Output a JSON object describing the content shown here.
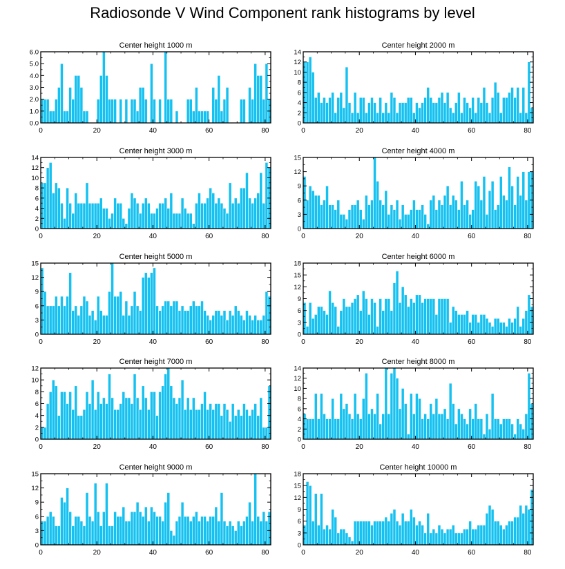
{
  "title": "Radiosonde V Wind Component rank histograms by level",
  "chart_data": [
    {
      "type": "bar",
      "title": "Center height 1000 m",
      "xlim": [
        0,
        82
      ],
      "ylim": [
        0,
        6
      ],
      "xticks": [
        0,
        20,
        40,
        60,
        80
      ],
      "yticks": [
        0,
        1,
        2,
        3,
        4,
        5,
        6
      ],
      "yticklabels": [
        "0.0",
        "1.0",
        "2.0",
        "3.0",
        "4.0",
        "5.0",
        "6.0"
      ],
      "values": [
        2,
        2,
        2,
        1,
        1,
        2,
        3,
        5,
        1,
        1,
        3,
        2,
        4,
        4,
        3,
        1,
        1,
        0,
        0,
        0,
        2,
        4,
        6,
        4,
        2,
        2,
        2,
        0,
        2,
        0,
        2,
        0,
        2,
        2,
        1,
        3,
        3,
        2,
        0,
        5,
        2,
        0,
        2,
        0,
        6,
        2,
        2,
        0,
        1,
        0,
        0,
        0,
        2,
        2,
        1,
        3,
        1,
        1,
        1,
        1,
        0,
        3,
        2,
        4,
        1,
        2,
        3,
        0,
        0,
        0,
        0,
        2,
        2,
        0,
        3,
        2,
        5,
        4,
        4,
        2,
        5,
        2
      ]
    },
    {
      "type": "bar",
      "title": "Center height 2000 m",
      "xlim": [
        0,
        82
      ],
      "ylim": [
        0,
        14
      ],
      "xticks": [
        0,
        20,
        40,
        60,
        80
      ],
      "yticks": [
        0,
        2,
        4,
        6,
        8,
        10,
        12,
        14
      ],
      "yticklabels": [
        "0",
        "2",
        "4",
        "6",
        "8",
        "10",
        "12",
        "14"
      ],
      "values": [
        12,
        12,
        13,
        10,
        5,
        6,
        4,
        5,
        4,
        5,
        6,
        2,
        5,
        6,
        3,
        11,
        4,
        2,
        6,
        2,
        5,
        5,
        2,
        4,
        5,
        4,
        2,
        5,
        2,
        4,
        2,
        6,
        5,
        2,
        4,
        4,
        4,
        5,
        5,
        2,
        4,
        3,
        4,
        5,
        7,
        5,
        4,
        4,
        5,
        6,
        4,
        6,
        3,
        2,
        4,
        6,
        2,
        5,
        4,
        3,
        5,
        2,
        5,
        4,
        7,
        4,
        2,
        5,
        8,
        6,
        2,
        5,
        5,
        6,
        7,
        5,
        7,
        2,
        7,
        2,
        12,
        3
      ]
    },
    {
      "type": "bar",
      "title": "Center height 3000 m",
      "xlim": [
        0,
        82
      ],
      "ylim": [
        0,
        14
      ],
      "xticks": [
        0,
        20,
        40,
        60,
        80
      ],
      "yticks": [
        0,
        2,
        4,
        6,
        8,
        10,
        12,
        14
      ],
      "yticklabels": [
        "0",
        "2",
        "4",
        "6",
        "8",
        "10",
        "12",
        "14"
      ],
      "values": [
        9,
        9,
        12,
        13,
        7,
        9,
        8,
        5,
        2,
        8,
        5,
        3,
        7,
        5,
        5,
        5,
        9,
        5,
        5,
        5,
        5,
        6,
        4,
        4,
        2,
        3,
        6,
        5,
        5,
        2,
        1,
        4,
        7,
        6,
        5,
        3,
        5,
        6,
        5,
        3,
        3,
        4,
        5,
        5,
        6,
        4,
        7,
        3,
        3,
        3,
        6,
        4,
        3,
        3,
        1,
        5,
        7,
        5,
        5,
        6,
        8,
        7,
        5,
        6,
        5,
        4,
        3,
        9,
        5,
        6,
        5,
        8,
        8,
        11,
        6,
        5,
        6,
        7,
        11,
        5,
        13,
        12
      ]
    },
    {
      "type": "bar",
      "title": "Center height 4000 m",
      "xlim": [
        0,
        82
      ],
      "ylim": [
        0,
        15
      ],
      "xticks": [
        0,
        20,
        40,
        60,
        80
      ],
      "yticks": [
        0,
        3,
        6,
        9,
        12,
        15
      ],
      "yticklabels": [
        "0",
        "3",
        "6",
        "9",
        "12",
        "15"
      ],
      "values": [
        11,
        6,
        9,
        8,
        7,
        7,
        5,
        6,
        9,
        5,
        5,
        4,
        6,
        3,
        3,
        2,
        4,
        5,
        5,
        6,
        4,
        2,
        7,
        5,
        6,
        15,
        10,
        6,
        5,
        8,
        3,
        5,
        4,
        6,
        2,
        5,
        3,
        3,
        4,
        6,
        4,
        4,
        5,
        3,
        1,
        6,
        7,
        4,
        6,
        5,
        7,
        9,
        5,
        7,
        6,
        4,
        10,
        5,
        6,
        3,
        4,
        10,
        9,
        6,
        11,
        3,
        8,
        10,
        4,
        5,
        11,
        7,
        6,
        13,
        9,
        5,
        11,
        7,
        12,
        6,
        12,
        12
      ]
    },
    {
      "type": "bar",
      "title": "Center height 5000 m",
      "xlim": [
        0,
        82
      ],
      "ylim": [
        0,
        15
      ],
      "xticks": [
        0,
        20,
        40,
        60,
        80
      ],
      "yticks": [
        0,
        3,
        6,
        9,
        12,
        15
      ],
      "yticklabels": [
        "0",
        "3",
        "6",
        "9",
        "12",
        "15"
      ],
      "values": [
        14,
        9,
        6,
        6,
        6,
        8,
        6,
        8,
        6,
        8,
        13,
        5,
        6,
        4,
        6,
        8,
        7,
        4,
        5,
        3,
        8,
        5,
        4,
        4,
        9,
        15,
        8,
        8,
        9,
        4,
        7,
        4,
        6,
        9,
        6,
        5,
        12,
        13,
        12,
        13,
        14,
        6,
        5,
        6,
        7,
        7,
        6,
        7,
        7,
        5,
        6,
        5,
        5,
        6,
        7,
        6,
        6,
        7,
        5,
        4,
        3,
        4,
        5,
        5,
        4,
        5,
        3,
        5,
        4,
        6,
        5,
        4,
        3,
        5,
        4,
        3,
        4,
        3,
        3,
        4,
        9,
        8
      ]
    },
    {
      "type": "bar",
      "title": "Center height 6000 m",
      "xlim": [
        0,
        82
      ],
      "ylim": [
        0,
        18
      ],
      "xticks": [
        0,
        20,
        40,
        60,
        80
      ],
      "yticks": [
        0,
        3,
        6,
        9,
        12,
        15,
        18
      ],
      "yticklabels": [
        "0",
        "3",
        "6",
        "9",
        "12",
        "15",
        "18"
      ],
      "values": [
        8,
        2,
        8,
        4,
        5,
        7,
        7,
        6,
        5,
        11,
        8,
        7,
        2,
        6,
        9,
        7,
        7,
        8,
        9,
        10,
        6,
        11,
        9,
        5,
        9,
        8,
        2,
        9,
        6,
        9,
        9,
        6,
        13,
        16,
        8,
        12,
        10,
        7,
        9,
        8,
        10,
        10,
        8,
        9,
        9,
        9,
        9,
        5,
        9,
        9,
        9,
        9,
        3,
        7,
        6,
        5,
        5,
        5,
        6,
        3,
        5,
        5,
        3,
        5,
        5,
        4,
        3,
        2,
        4,
        4,
        3,
        3,
        2,
        4,
        3,
        4,
        7,
        2,
        4,
        6,
        10,
        7
      ]
    },
    {
      "type": "bar",
      "title": "Center height 7000 m",
      "xlim": [
        0,
        82
      ],
      "ylim": [
        0,
        12
      ],
      "xticks": [
        0,
        20,
        40,
        60,
        80
      ],
      "yticks": [
        0,
        2,
        4,
        6,
        8,
        10,
        12
      ],
      "yticklabels": [
        "0",
        "2",
        "4",
        "6",
        "8",
        "10",
        "12"
      ],
      "values": [
        2,
        2,
        6,
        8,
        10,
        9,
        4,
        8,
        8,
        6,
        8,
        5,
        9,
        4,
        4,
        5,
        8,
        6,
        10,
        5,
        8,
        6,
        7,
        6,
        11,
        7,
        5,
        5,
        6,
        8,
        7,
        7,
        6,
        11,
        7,
        5,
        9,
        7,
        5,
        8,
        8,
        4,
        8,
        9,
        11,
        12,
        9,
        7,
        6,
        7,
        10,
        5,
        7,
        5,
        7,
        5,
        5,
        6,
        8,
        5,
        6,
        5,
        6,
        6,
        4,
        6,
        5,
        3,
        6,
        4,
        5,
        4,
        6,
        5,
        4,
        5,
        6,
        4,
        7,
        2,
        2,
        9
      ]
    },
    {
      "type": "bar",
      "title": "Center height 8000 m",
      "xlim": [
        0,
        82
      ],
      "ylim": [
        0,
        14
      ],
      "xticks": [
        0,
        20,
        40,
        60,
        80
      ],
      "yticks": [
        0,
        2,
        4,
        6,
        8,
        10,
        12,
        14
      ],
      "yticklabels": [
        "0",
        "2",
        "4",
        "6",
        "8",
        "10",
        "12",
        "14"
      ],
      "values": [
        5,
        4,
        4,
        4,
        9,
        4,
        9,
        5,
        4,
        4,
        8,
        4,
        4,
        9,
        6,
        7,
        5,
        4,
        9,
        5,
        4,
        8,
        13,
        5,
        6,
        5,
        9,
        3,
        5,
        14,
        5,
        13,
        14,
        12,
        6,
        10,
        7,
        1,
        9,
        5,
        9,
        8,
        4,
        5,
        4,
        7,
        5,
        8,
        5,
        5,
        6,
        4,
        11,
        7,
        3,
        6,
        5,
        4,
        3,
        6,
        4,
        7,
        4,
        4,
        1,
        5,
        2,
        9,
        4,
        4,
        3,
        4,
        4,
        4,
        3,
        1,
        4,
        3,
        2,
        5,
        13,
        7
      ]
    },
    {
      "type": "bar",
      "title": "Center height 9000 m",
      "xlim": [
        0,
        82
      ],
      "ylim": [
        0,
        15
      ],
      "xticks": [
        0,
        20,
        40,
        60,
        80
      ],
      "yticks": [
        0,
        3,
        6,
        9,
        12,
        15
      ],
      "yticklabels": [
        "0",
        "3",
        "6",
        "9",
        "12",
        "15"
      ],
      "values": [
        5,
        5,
        6,
        7,
        6,
        4,
        4,
        10,
        9,
        12,
        7,
        4,
        6,
        6,
        5,
        4,
        11,
        6,
        5,
        13,
        7,
        4,
        7,
        13,
        4,
        4,
        7,
        6,
        6,
        8,
        5,
        5,
        7,
        7,
        9,
        7,
        6,
        8,
        5,
        8,
        7,
        6,
        6,
        5,
        9,
        11,
        3,
        2,
        5,
        6,
        9,
        6,
        6,
        5,
        6,
        7,
        5,
        6,
        6,
        5,
        6,
        6,
        8,
        5,
        11,
        5,
        4,
        5,
        4,
        3,
        5,
        4,
        5,
        6,
        9,
        5,
        15,
        6,
        5,
        7,
        5,
        7
      ]
    },
    {
      "type": "bar",
      "title": "Center height 10000 m",
      "xlim": [
        0,
        82
      ],
      "ylim": [
        0,
        18
      ],
      "xticks": [
        0,
        20,
        40,
        60,
        80
      ],
      "yticks": [
        0,
        3,
        6,
        9,
        12,
        15,
        18
      ],
      "yticklabels": [
        "0",
        "3",
        "6",
        "9",
        "12",
        "15",
        "18"
      ],
      "values": [
        5,
        16,
        15,
        6,
        13,
        5,
        13,
        4,
        5,
        4,
        9,
        7,
        3,
        4,
        4,
        3,
        2,
        1,
        6,
        6,
        6,
        6,
        6,
        6,
        5,
        6,
        6,
        6,
        6,
        7,
        6,
        8,
        9,
        6,
        5,
        8,
        6,
        6,
        9,
        7,
        5,
        6,
        5,
        3,
        8,
        3,
        4,
        3,
        5,
        4,
        3,
        4,
        4,
        5,
        3,
        3,
        3,
        4,
        4,
        6,
        4,
        4,
        5,
        5,
        5,
        8,
        10,
        9,
        6,
        6,
        5,
        4,
        5,
        6,
        6,
        7,
        7,
        10,
        8,
        10,
        9,
        14
      ]
    }
  ]
}
